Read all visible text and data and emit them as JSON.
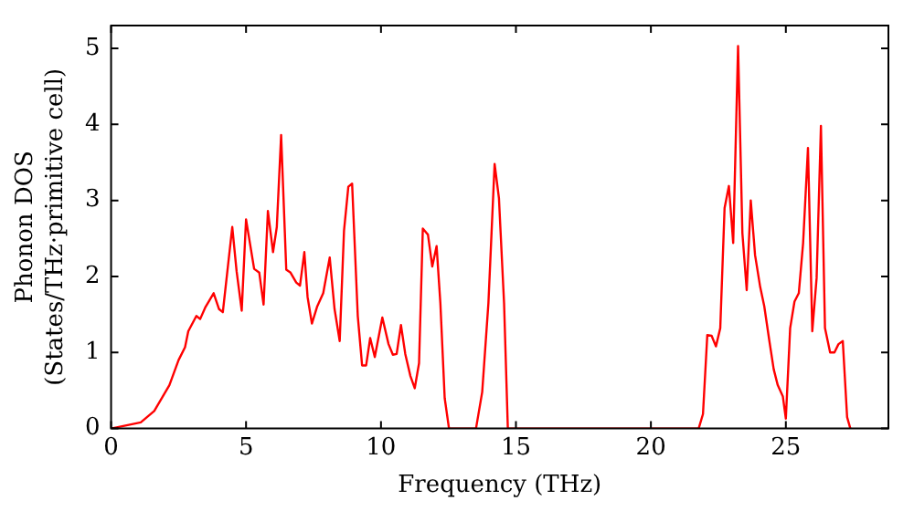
{
  "chart_data": {
    "type": "line",
    "xlabel": "Frequency (THz)",
    "ylabel": "Phonon DOS\n(States/THz·primitive cell)",
    "xlim": [
      0,
      28.8
    ],
    "ylim": [
      0,
      5.3
    ],
    "xticks": [
      0,
      5,
      10,
      15,
      20,
      25
    ],
    "yticks": [
      0,
      1,
      2,
      3,
      4,
      5
    ],
    "grid": false,
    "legend": false,
    "marker": "none",
    "line_style": "solid",
    "series": [
      {
        "color": "#ff0000",
        "x": [
          0,
          1.1,
          1.6,
          2.16,
          2.5,
          2.74,
          2.86,
          3.16,
          3.3,
          3.5,
          3.8,
          4.0,
          4.14,
          4.49,
          4.65,
          4.84,
          5.0,
          5.3,
          5.49,
          5.65,
          5.81,
          6.0,
          6.14,
          6.3,
          6.49,
          6.65,
          6.86,
          7.0,
          7.16,
          7.28,
          7.44,
          7.63,
          7.86,
          8.1,
          8.28,
          8.47,
          8.63,
          8.79,
          8.93,
          9.14,
          9.3,
          9.45,
          9.6,
          9.77,
          10.05,
          10.28,
          10.44,
          10.58,
          10.74,
          10.9,
          11.09,
          11.25,
          11.41,
          11.55,
          11.74,
          11.9,
          12.06,
          12.2,
          12.36,
          12.52,
          13.52,
          13.75,
          13.98,
          14.21,
          14.37,
          14.56,
          14.7,
          21.77,
          21.93,
          22.09,
          22.25,
          22.41,
          22.57,
          22.73,
          22.89,
          23.05,
          23.23,
          23.39,
          23.55,
          23.7,
          23.86,
          24.05,
          24.2,
          24.39,
          24.55,
          24.7,
          24.89,
          25.0,
          25.16,
          25.32,
          25.48,
          25.64,
          25.82,
          25.98,
          26.14,
          26.3,
          26.45,
          26.64,
          26.8,
          26.95,
          27.11,
          27.27,
          27.39
        ],
        "values": [
          0,
          0.08,
          0.23,
          0.57,
          0.9,
          1.07,
          1.28,
          1.48,
          1.44,
          1.6,
          1.78,
          1.57,
          1.53,
          2.65,
          2.07,
          1.55,
          2.75,
          2.1,
          2.05,
          1.63,
          2.86,
          2.32,
          2.65,
          3.86,
          2.09,
          2.05,
          1.92,
          1.88,
          2.32,
          1.73,
          1.38,
          1.6,
          1.78,
          2.25,
          1.57,
          1.15,
          2.6,
          3.18,
          3.22,
          1.48,
          0.83,
          0.83,
          1.19,
          0.94,
          1.46,
          1.11,
          0.97,
          0.98,
          1.36,
          0.98,
          0.69,
          0.53,
          0.86,
          2.63,
          2.55,
          2.13,
          2.4,
          1.65,
          0.4,
          0,
          0,
          0.48,
          1.65,
          3.48,
          3.03,
          1.65,
          0,
          0,
          0.19,
          1.23,
          1.22,
          1.08,
          1.32,
          2.9,
          3.19,
          2.44,
          5.03,
          2.57,
          1.82,
          3.0,
          2.28,
          1.86,
          1.61,
          1.15,
          0.78,
          0.57,
          0.42,
          0.13,
          1.32,
          1.67,
          1.78,
          2.44,
          3.69,
          1.28,
          1.98,
          3.98,
          1.32,
          1.0,
          1.0,
          1.11,
          1.15,
          0.15,
          0
        ]
      }
    ]
  }
}
